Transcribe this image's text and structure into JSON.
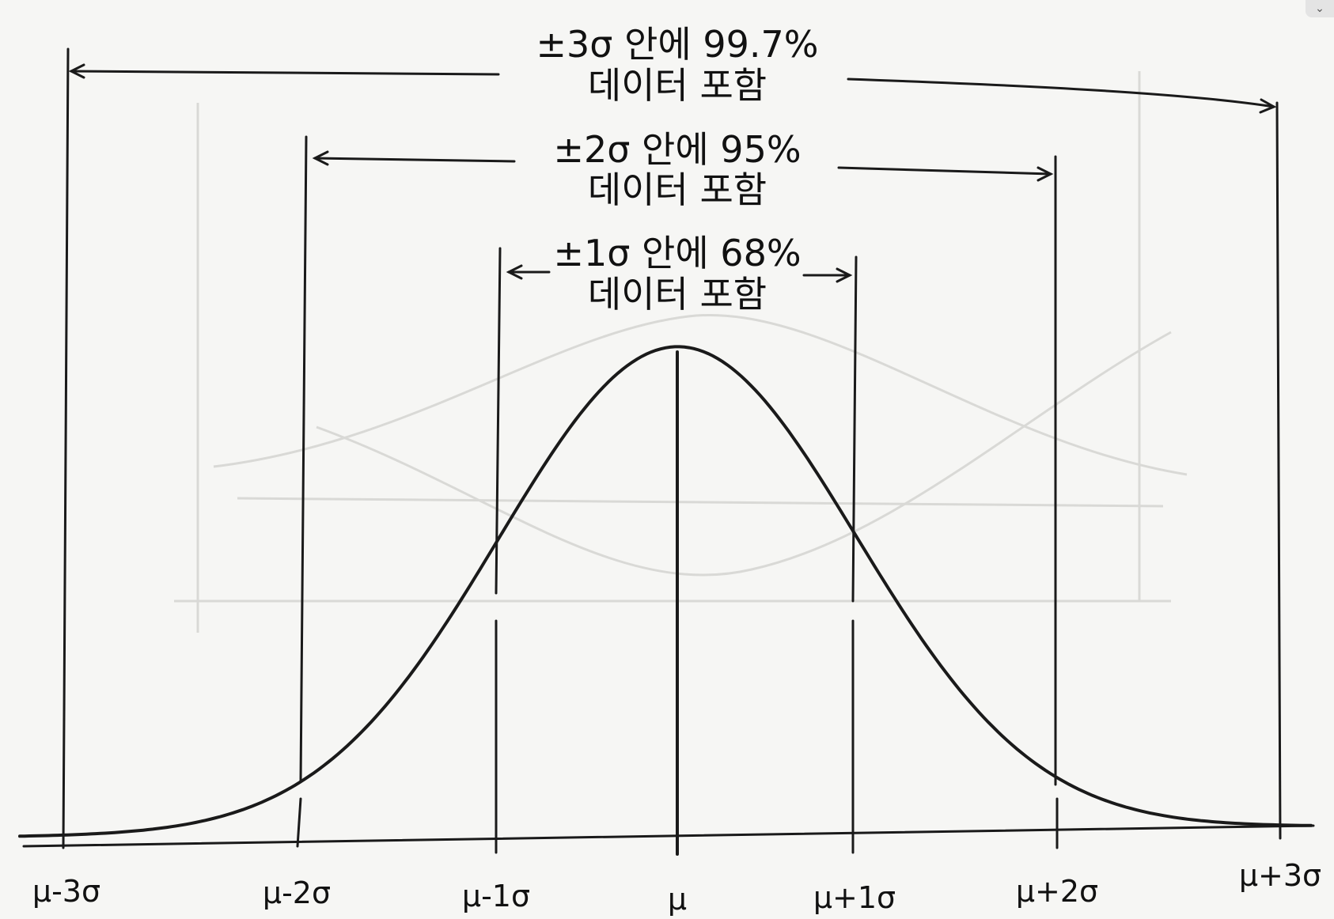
{
  "annotations": [
    {
      "line1": "±3σ 안에 99.7%",
      "line2": "데이터 포함"
    },
    {
      "line1": "±2σ 안에 95%",
      "line2": "데이터 포함"
    },
    {
      "line1": "±1σ 안에 68%",
      "line2": "데이터 포함"
    }
  ],
  "ticks": [
    "μ-3σ",
    "μ-2σ",
    "μ-1σ",
    "μ",
    "μ+1σ",
    "μ+2σ",
    "μ+3σ"
  ],
  "colors": {
    "ink": "#1a1a1a",
    "paper": "#f6f6f4",
    "bleed": "#d9d9d6"
  },
  "corner_icon": "chevron-down-icon"
}
